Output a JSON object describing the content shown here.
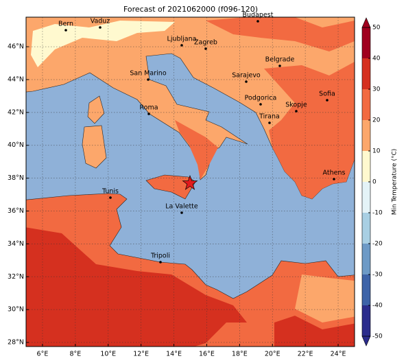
{
  "map": {
    "title": "Forecast of 2021062000 (f096-120)",
    "xlim": [
      5,
      25
    ],
    "ylim": [
      27.75,
      47.8
    ],
    "xticks": [
      {
        "value": 6,
        "label": "6°E"
      },
      {
        "value": 8,
        "label": "8°E"
      },
      {
        "value": 10,
        "label": "10°E"
      },
      {
        "value": 12,
        "label": "12°E"
      },
      {
        "value": 14,
        "label": "14°E"
      },
      {
        "value": 16,
        "label": "16°E"
      },
      {
        "value": 18,
        "label": "18°E"
      },
      {
        "value": 20,
        "label": "20°E"
      },
      {
        "value": 22,
        "label": "22°E"
      },
      {
        "value": 24,
        "label": "24°E"
      }
    ],
    "yticks": [
      {
        "value": 28,
        "label": "28°N"
      },
      {
        "value": 30,
        "label": "30°N"
      },
      {
        "value": 32,
        "label": "32°N"
      },
      {
        "value": 34,
        "label": "34°N"
      },
      {
        "value": 36,
        "label": "36°N"
      },
      {
        "value": 38,
        "label": "38°N"
      },
      {
        "value": 40,
        "label": "40°N"
      },
      {
        "value": 42,
        "label": "42°N"
      },
      {
        "value": 44,
        "label": "44°N"
      },
      {
        "value": 46,
        "label": "46°N"
      }
    ],
    "grid": true,
    "cities": [
      "Bern",
      "Vaduz",
      "Budapest",
      "Ljubljana",
      "Zagreb",
      "Belgrade",
      "Sarajevo",
      "San Marino",
      "Podgorica",
      "Sofia",
      "Roma",
      "Skopje",
      "Tirana",
      "Athens",
      "Tunis",
      "La Valette",
      "Tripoli"
    ],
    "colorbar": {
      "label": "Min Temperature (°C)",
      "ticks": [
        -50,
        -40,
        -30,
        -20,
        -10,
        0,
        10,
        20,
        30,
        40,
        50
      ],
      "colors": [
        "#2b2c8c",
        "#3d63a8",
        "#6d9ac6",
        "#a8cfe3",
        "#e4f3f7",
        "#fff9cf",
        "#fca76b",
        "#f26a41",
        "#d5301f",
        "#a0001e"
      ]
    }
  }
}
